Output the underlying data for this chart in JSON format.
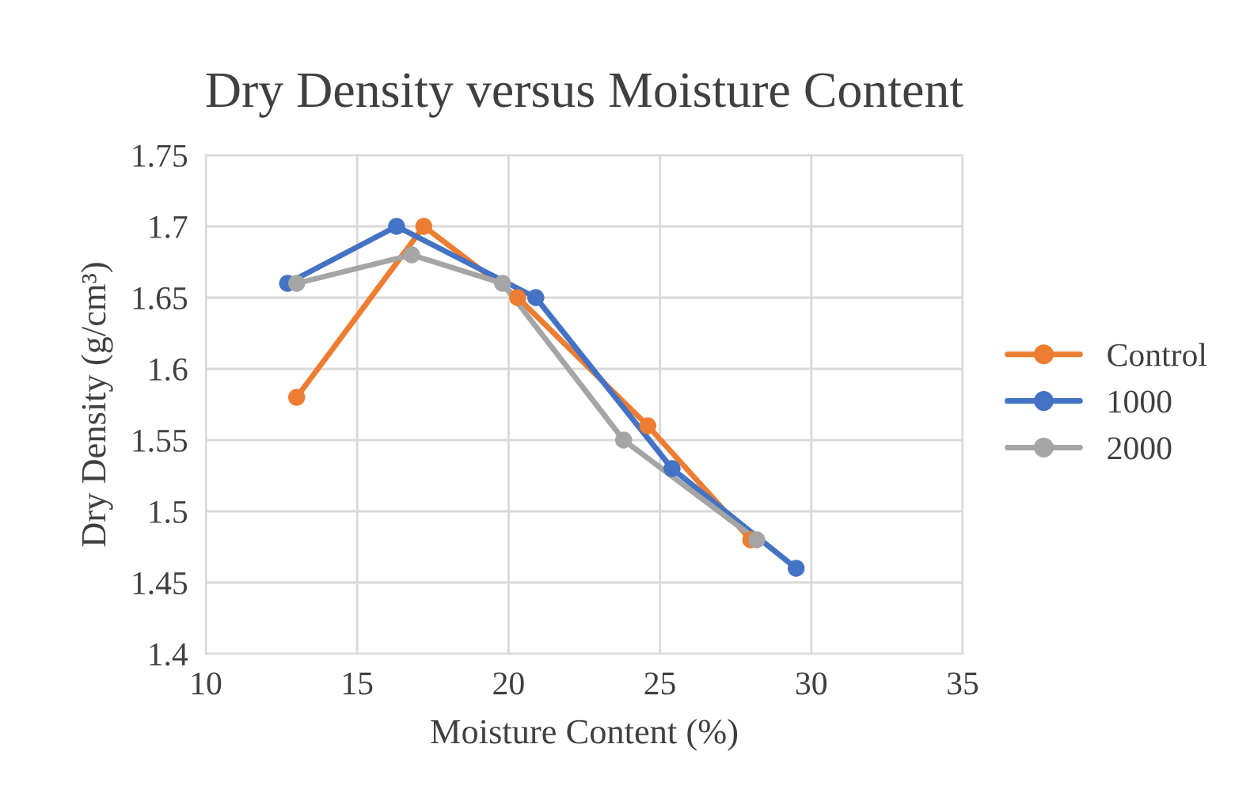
{
  "chart_data": {
    "type": "line",
    "title": "Dry Density versus Moisture Content",
    "xlabel": "Moisture Content (%)",
    "ylabel": "Dry Density (g/cm³)",
    "xlim": [
      10,
      35
    ],
    "xticks": [
      10,
      15,
      20,
      25,
      30,
      35
    ],
    "ylim": [
      1.4,
      1.75
    ],
    "yticks": [
      {
        "value": 1.4,
        "label": "1.4"
      },
      {
        "value": 1.45,
        "label": "1.45"
      },
      {
        "value": 1.5,
        "label": "1.5"
      },
      {
        "value": 1.55,
        "label": "1.55"
      },
      {
        "value": 1.6,
        "label": "1.6"
      },
      {
        "value": 1.65,
        "label": "1.65"
      },
      {
        "value": 1.7,
        "label": "1.7"
      },
      {
        "value": 1.75,
        "label": "1.75"
      }
    ],
    "grid": true,
    "legend": "right",
    "marker": "circle",
    "line_style": "solid",
    "series": [
      {
        "name": "Control",
        "color": "#ed7d31",
        "x": [
          13.0,
          17.2,
          20.3,
          24.6,
          28.0
        ],
        "values": [
          1.58,
          1.7,
          1.65,
          1.56,
          1.48
        ]
      },
      {
        "name": "1000",
        "color": "#4472c4",
        "x": [
          12.7,
          16.3,
          20.9,
          25.4,
          29.5
        ],
        "values": [
          1.66,
          1.7,
          1.65,
          1.53,
          1.46
        ]
      },
      {
        "name": "2000",
        "color": "#a5a5a5",
        "x": [
          13.0,
          16.8,
          19.8,
          23.8,
          28.2
        ],
        "values": [
          1.66,
          1.68,
          1.66,
          1.55,
          1.48
        ]
      }
    ]
  }
}
